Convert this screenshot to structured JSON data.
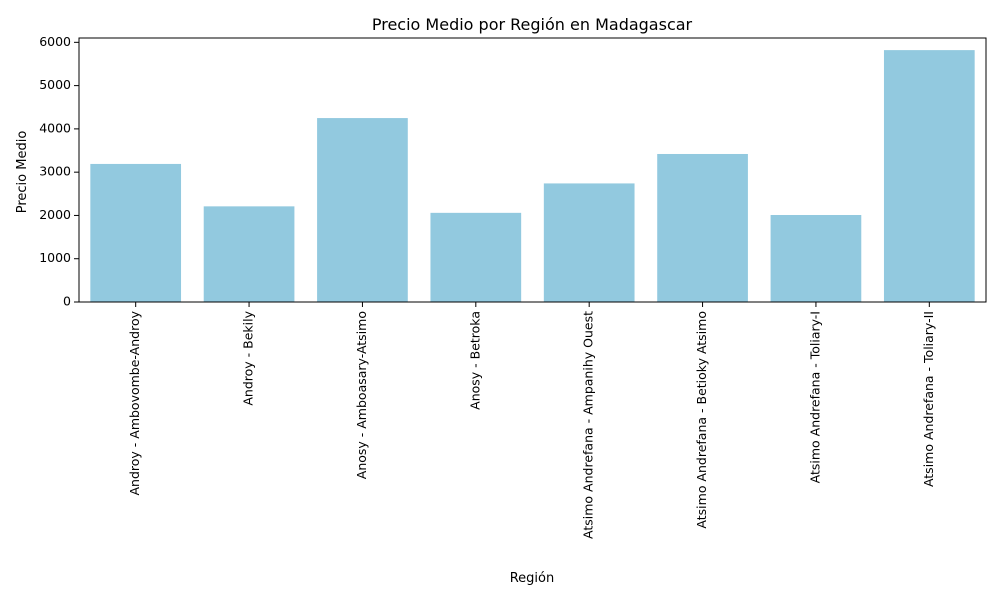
{
  "chart_data": {
    "type": "bar",
    "title": "Precio Medio por Región en Madagascar",
    "xlabel": "Región",
    "ylabel": "Precio Medio",
    "categories": [
      "Androy - Ambovombe-Androy",
      "Androy - Bekily",
      "Anosy - Amboasary-Atsimo",
      "Anosy - Betroka",
      "Atsimo Andrefana - Ampanihy Ouest",
      "Atsimo Andrefana - Betioky Atsimo",
      "Atsimo Andrefana - Toliary-I",
      "Atsimo Andrefana - Toliary-II"
    ],
    "values": [
      3190,
      2210,
      4250,
      2060,
      2740,
      3420,
      2010,
      5820
    ],
    "ylim": [
      0,
      6100
    ],
    "yticks": [
      0,
      1000,
      2000,
      3000,
      4000,
      5000,
      6000
    ],
    "bar_color": "#92c9df",
    "grid": false,
    "legend": false
  }
}
